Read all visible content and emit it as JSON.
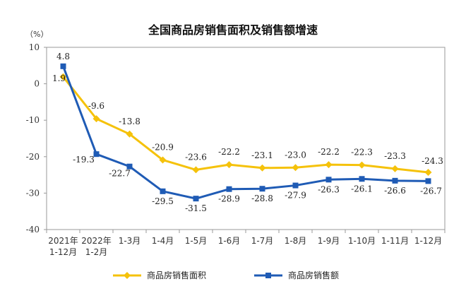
{
  "chart_data": {
    "type": "line",
    "title": "全国商品房销售面积及销售额增速",
    "unit_label": "（%）",
    "ylim": [
      -40,
      10
    ],
    "yticks": [
      10,
      0,
      -10,
      -20,
      -30,
      -40
    ],
    "grid": false,
    "legend_position": "bottom",
    "categories": [
      [
        "2021年",
        "1-12月"
      ],
      [
        "2022年",
        "1-2月"
      ],
      [
        "1-3月"
      ],
      [
        "1-4月"
      ],
      [
        "1-5月"
      ],
      [
        "1-6月"
      ],
      [
        "1-7月"
      ],
      [
        "1-8月"
      ],
      [
        "1-9月"
      ],
      [
        "1-10月"
      ],
      [
        "1-11月"
      ],
      [
        "1-12月"
      ]
    ],
    "series": [
      {
        "name": "商品房销售面积",
        "color": "#f5c20b",
        "marker": "diamond",
        "values": [
          1.9,
          -9.6,
          -13.8,
          -20.9,
          -23.6,
          -22.2,
          -23.1,
          -23.0,
          -22.2,
          -22.3,
          -23.3,
          -24.3
        ],
        "labels": [
          "1.9",
          "-9.6",
          "-13.8",
          "-20.9",
          "-23.6",
          "-22.2",
          "-23.1",
          "-23.0",
          "-22.2",
          "-22.3",
          "-23.3",
          "-24.3"
        ]
      },
      {
        "name": "商品房销售额",
        "color": "#1f5bb5",
        "marker": "square",
        "values": [
          4.8,
          -19.3,
          -22.7,
          -29.5,
          -31.5,
          -28.9,
          -28.8,
          -27.9,
          -26.3,
          -26.1,
          -26.6,
          -26.7
        ],
        "labels": [
          "4.8",
          "-19.3",
          "-22.7",
          "-29.5",
          "-31.5",
          "-28.9",
          "-28.8",
          "-27.9",
          "-26.3",
          "-26.1",
          "-26.6",
          "-26.7"
        ]
      }
    ]
  }
}
